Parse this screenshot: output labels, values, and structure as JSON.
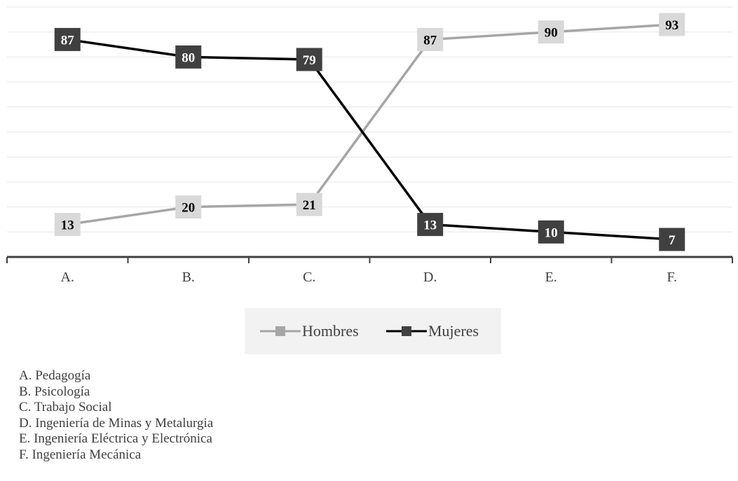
{
  "chart_data": {
    "type": "line",
    "categories": [
      "A.",
      "B.",
      "C.",
      "D.",
      "E.",
      "F."
    ],
    "series": [
      {
        "name": "Hombres",
        "values": [
          13,
          20,
          21,
          87,
          90,
          93
        ],
        "color": "#a6a6a6",
        "marker_fill": "#d9d9d9",
        "label_color": "#000000"
      },
      {
        "name": "Mujeres",
        "values": [
          87,
          80,
          79,
          13,
          10,
          7
        ],
        "color": "#000000",
        "marker_fill": "#404040",
        "label_color": "#ffffff"
      }
    ],
    "ylim": [
      0,
      100
    ],
    "grid": true,
    "legend": "bottom",
    "data_labels": true
  },
  "legend": {
    "hombres": "Hombres",
    "mujeres": "Mujeres"
  },
  "notes": [
    "A. Pedagogía",
    "B. Psicología",
    "C. Trabajo Social",
    "D. Ingeniería de Minas y Metalurgia",
    "E. Ingeniería Eléctrica y Electrónica",
    "F. Ingeniería Mecánica"
  ]
}
